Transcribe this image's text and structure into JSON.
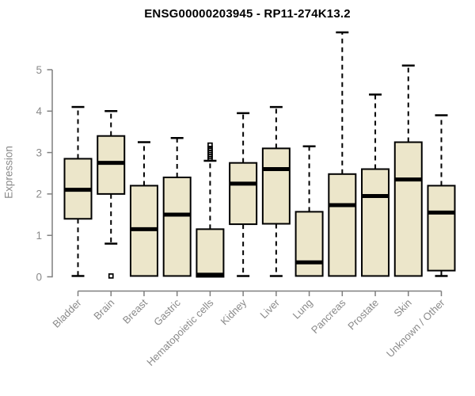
{
  "title": "ENSG00000203945 - RP11-274K13.2",
  "chart_data": {
    "type": "boxplot",
    "title": "ENSG00000203945 - RP11-274K13.2",
    "xlabel": "",
    "ylabel": "Expression",
    "ylim": [
      0,
      5
    ],
    "yticks": [
      0,
      1,
      2,
      3,
      4,
      5
    ],
    "grid": false,
    "legend": "none",
    "categories": [
      "Bladder",
      "Brain",
      "Breast",
      "Gastric",
      "Hematopoietic cells",
      "Kidney",
      "Liver",
      "Lung",
      "Pancreas",
      "Prostate",
      "Skin",
      "Unknown / Other"
    ],
    "boxes": [
      {
        "category": "Bladder",
        "whisker_low": 0.02,
        "q1": 1.4,
        "median": 2.1,
        "q3": 2.85,
        "whisker_high": 4.1,
        "outliers": []
      },
      {
        "category": "Brain",
        "whisker_low": 0.8,
        "q1": 2.0,
        "median": 2.75,
        "q3": 3.4,
        "whisker_high": 4.0,
        "outliers": [
          0.02
        ]
      },
      {
        "category": "Breast",
        "whisker_low": 0.02,
        "q1": 0.02,
        "median": 1.15,
        "q3": 2.2,
        "whisker_high": 3.25,
        "outliers": []
      },
      {
        "category": "Gastric",
        "whisker_low": 0.02,
        "q1": 0.02,
        "median": 1.5,
        "q3": 2.4,
        "whisker_high": 3.35,
        "outliers": []
      },
      {
        "category": "Hematopoietic cells",
        "whisker_low": 0.0,
        "q1": 0.0,
        "median": 0.05,
        "q3": 1.15,
        "whisker_high": 2.8,
        "outliers": [
          2.85,
          2.9,
          2.95,
          3.0,
          3.05,
          3.1,
          3.18
        ]
      },
      {
        "category": "Kidney",
        "whisker_low": 0.02,
        "q1": 1.27,
        "median": 2.25,
        "q3": 2.75,
        "whisker_high": 3.95,
        "outliers": []
      },
      {
        "category": "Liver",
        "whisker_low": 0.02,
        "q1": 1.28,
        "median": 2.6,
        "q3": 3.1,
        "whisker_high": 4.1,
        "outliers": []
      },
      {
        "category": "Lung",
        "whisker_low": 0.02,
        "q1": 0.02,
        "median": 0.35,
        "q3": 1.57,
        "whisker_high": 3.15,
        "outliers": []
      },
      {
        "category": "Pancreas",
        "whisker_low": 0.02,
        "q1": 0.02,
        "median": 1.73,
        "q3": 2.48,
        "whisker_high": 5.9,
        "outliers": []
      },
      {
        "category": "Prostate",
        "whisker_low": 0.02,
        "q1": 0.02,
        "median": 1.95,
        "q3": 2.6,
        "whisker_high": 4.4,
        "outliers": []
      },
      {
        "category": "Skin",
        "whisker_low": 0.02,
        "q1": 0.02,
        "median": 2.35,
        "q3": 3.25,
        "whisker_high": 5.1,
        "outliers": []
      },
      {
        "category": "Unknown / Other",
        "whisker_low": 0.02,
        "q1": 0.15,
        "median": 1.55,
        "q3": 2.2,
        "whisker_high": 3.9,
        "outliers": []
      }
    ],
    "style": {
      "box_fill": "#ECE6CA",
      "box_border": "#000000",
      "median_color": "#000000",
      "whisker_style": "dashed",
      "axis_color": "#7f7f7f",
      "label_color": "#8a8a8a",
      "title_color": "#000000",
      "background": "#FFFFFF"
    }
  }
}
